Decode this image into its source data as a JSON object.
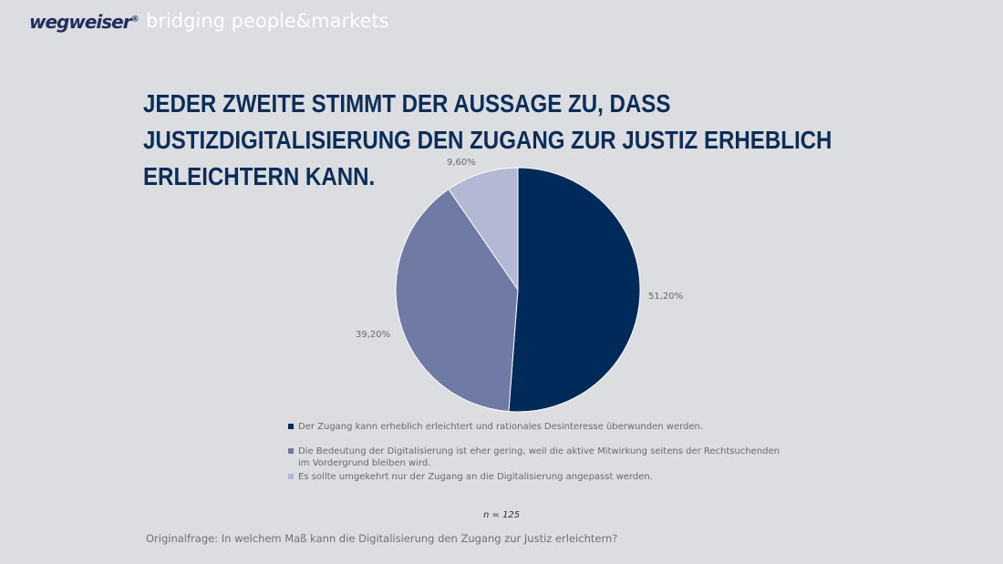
{
  "header": {
    "logo": "wegweiser",
    "tagline": "bridging people&markets"
  },
  "title": "JEDER ZWEITE STIMMT DER AUSSAGE ZU, DASS JUSTIZDIGITALISIERUNG DEN ZUGANG ZUR JUSTIZ ERHEBLICH ERLEICHTERN KANN.",
  "chart_data": {
    "type": "pie",
    "start": "top, clockwise",
    "slices": [
      {
        "label": "Der Zugang kann erheblich erleichtert und rationales Desinteresse überwunden werden.",
        "value": 51.2,
        "display": "51,20%",
        "color": "#002a5a"
      },
      {
        "label": "Die Bedeutung der Digitalisierung ist eher gering, weil die aktive Mitwirkung seitens der Rechtsuchenden im Vordergrund bleiben wird.",
        "value": 39.2,
        "display": "39,20%",
        "color": "#6f7ba4"
      },
      {
        "label": "Es sollte umgekehrt nur der Zugang an die Digitalisierung angepasst werden.",
        "value": 9.6,
        "display": "9,60%",
        "color": "#b3b8d4"
      }
    ],
    "legend_position": "bottom"
  },
  "footer": {
    "n": "n = 125",
    "question": "Originalfrage: In welchem Maß kann die Digitalisierung den Zugang zur Justiz erleichtern?"
  }
}
